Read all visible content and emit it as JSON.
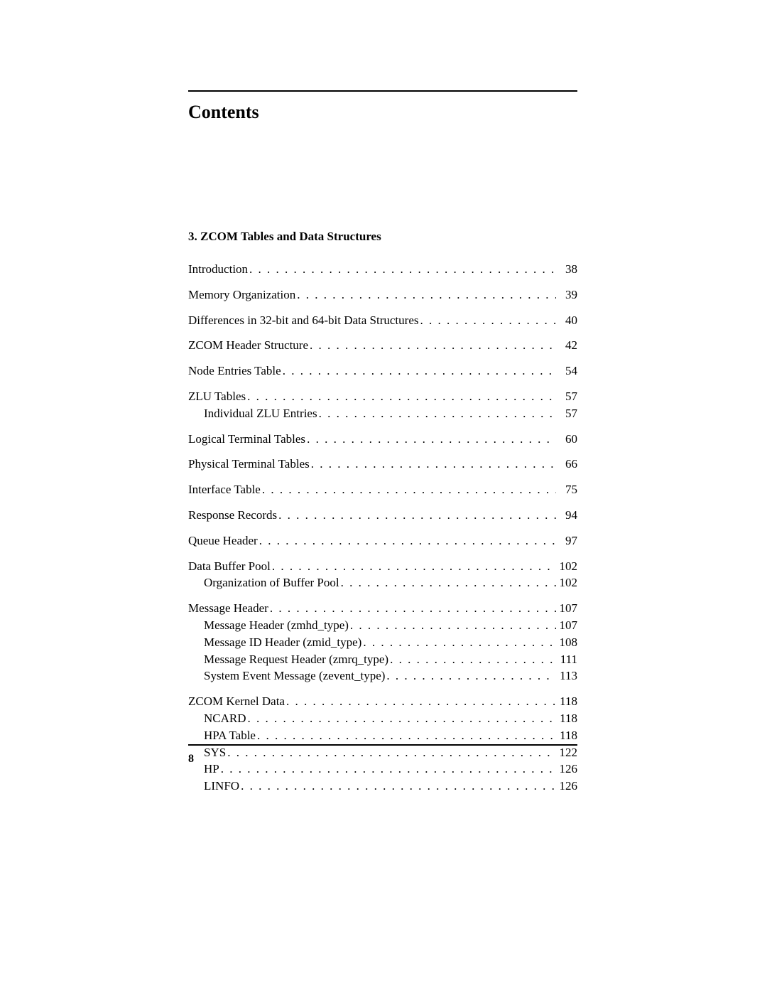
{
  "title": "Contents",
  "section_heading": "3. ZCOM Tables and Data Structures",
  "page_number": "8",
  "toc": [
    {
      "group": [
        {
          "label": "Introduction",
          "page": "38",
          "indent": 0
        }
      ]
    },
    {
      "group": [
        {
          "label": "Memory Organization",
          "page": "39",
          "indent": 0
        }
      ]
    },
    {
      "group": [
        {
          "label": "Differences in 32-bit and 64-bit Data Structures",
          "page": "40",
          "indent": 0
        }
      ]
    },
    {
      "group": [
        {
          "label": "ZCOM Header Structure",
          "page": "42",
          "indent": 0
        }
      ]
    },
    {
      "group": [
        {
          "label": "Node Entries Table",
          "page": "54",
          "indent": 0
        }
      ]
    },
    {
      "group": [
        {
          "label": "ZLU Tables",
          "page": "57",
          "indent": 0
        },
        {
          "label": "Individual ZLU Entries",
          "page": "57",
          "indent": 1
        }
      ]
    },
    {
      "group": [
        {
          "label": "Logical Terminal Tables",
          "page": "60",
          "indent": 0
        }
      ]
    },
    {
      "group": [
        {
          "label": "Physical Terminal Tables",
          "page": "66",
          "indent": 0
        }
      ]
    },
    {
      "group": [
        {
          "label": "Interface Table",
          "page": "75",
          "indent": 0
        }
      ]
    },
    {
      "group": [
        {
          "label": "Response Records",
          "page": "94",
          "indent": 0
        }
      ]
    },
    {
      "group": [
        {
          "label": "Queue Header",
          "page": "97",
          "indent": 0
        }
      ]
    },
    {
      "group": [
        {
          "label": "Data Buffer Pool",
          "page": "102",
          "indent": 0
        },
        {
          "label": "Organization of Buffer Pool",
          "page": "102",
          "indent": 1
        }
      ]
    },
    {
      "group": [
        {
          "label": "Message Header",
          "page": "107",
          "indent": 0
        },
        {
          "label": "Message Header (zmhd_type)",
          "page": "107",
          "indent": 1
        },
        {
          "label": "Message ID Header (zmid_type)",
          "page": "108",
          "indent": 1
        },
        {
          "label": "Message Request Header (zmrq_type)",
          "page": "111",
          "indent": 1
        },
        {
          "label": "System Event Message (zevent_type)",
          "page": "113",
          "indent": 1
        }
      ]
    },
    {
      "group": [
        {
          "label": "ZCOM Kernel Data",
          "page": "118",
          "indent": 0
        },
        {
          "label": "NCARD",
          "page": "118",
          "indent": 1
        },
        {
          "label": "HPA Table",
          "page": "118",
          "indent": 1
        },
        {
          "label": "SYS",
          "page": "122",
          "indent": 1
        },
        {
          "label": "HP",
          "page": "126",
          "indent": 1
        },
        {
          "label": "LINFO",
          "page": "126",
          "indent": 1
        }
      ]
    }
  ]
}
